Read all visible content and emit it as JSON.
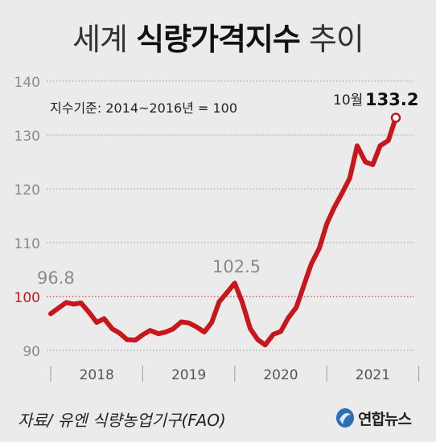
{
  "title_light1": "세계",
  "title_bold": "식량가격지수",
  "title_light2": "추이",
  "base_note": "지수기준: 2014~2016년 = 100",
  "source": "자료/ 유엔 식량농업기구(FAO)",
  "logo_text": "연합뉴스",
  "colors": {
    "line": "#c8161d",
    "background": "#ebebeb",
    "reference_line": "#c8161d"
  },
  "chart_data": {
    "type": "line",
    "title": "세계 식량가격지수 추이",
    "ylim": [
      90,
      140
    ],
    "yticks": [
      90,
      100,
      110,
      120,
      130,
      140
    ],
    "reference_value": 100,
    "xlim": [
      2018.0,
      2021.75
    ],
    "x_categories": [
      "2018",
      "2019",
      "2020",
      "2021"
    ],
    "x": [
      2018.0,
      2018.08,
      2018.17,
      2018.25,
      2018.33,
      2018.42,
      2018.5,
      2018.58,
      2018.67,
      2018.75,
      2018.83,
      2018.92,
      2019.0,
      2019.08,
      2019.17,
      2019.25,
      2019.33,
      2019.42,
      2019.5,
      2019.58,
      2019.67,
      2019.75,
      2019.83,
      2019.92,
      2020.0,
      2020.08,
      2020.17,
      2020.25,
      2020.33,
      2020.42,
      2020.5,
      2020.58,
      2020.67,
      2020.75,
      2020.83,
      2020.92,
      2021.0,
      2021.08,
      2021.17,
      2021.25,
      2021.33,
      2021.42,
      2021.5,
      2021.58,
      2021.67,
      2021.75
    ],
    "values": [
      96.8,
      97.8,
      98.9,
      98.6,
      98.8,
      97.0,
      95.2,
      95.9,
      94.0,
      93.2,
      92.0,
      91.9,
      92.9,
      93.7,
      93.1,
      93.4,
      94.0,
      95.3,
      95.1,
      94.4,
      93.4,
      95.2,
      99.0,
      100.8,
      102.5,
      99.0,
      94.0,
      92.0,
      91.0,
      93.0,
      93.5,
      96.0,
      98.0,
      102.0,
      106.0,
      109.0,
      113.5,
      116.5,
      119.3,
      122.0,
      128.0,
      125.0,
      124.5,
      128.0,
      129.0,
      133.2
    ],
    "annotations": [
      {
        "label": "96.8",
        "value": 96.8
      },
      {
        "label": "102.5",
        "value": 102.5
      },
      {
        "prefix": "10월",
        "label": "133.2",
        "value": 133.2
      }
    ]
  }
}
